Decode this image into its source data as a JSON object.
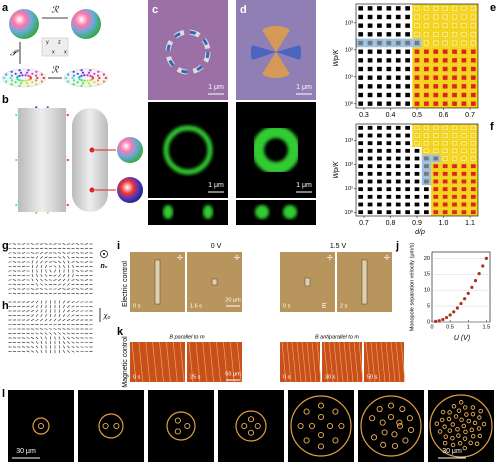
{
  "panels": {
    "a": {
      "label": "a",
      "top_operator": "ℛ",
      "left_operator": "𝒫",
      "bottom_operator": "ℛ",
      "inset_axes": [
        "y",
        "z",
        "x",
        "x"
      ]
    },
    "b": {
      "label": "b"
    },
    "c": {
      "label": "c",
      "scale_top": "1 μm",
      "scale_bottom": "1 μm"
    },
    "d": {
      "label": "d",
      "scale_top": "1 μm",
      "scale_bottom": "1 μm"
    },
    "e": {
      "label": "e",
      "y_label": "Wp/K",
      "xlim": [
        0.27,
        0.73
      ],
      "xticks": [
        0.3,
        0.4,
        0.5,
        0.6,
        0.7
      ],
      "ylim": [
        0.7,
        5000
      ],
      "log_y": true,
      "yticks": [
        {
          "value": 1,
          "label": "10⁰"
        },
        {
          "value": 10,
          "label": "10¹"
        },
        {
          "value": 100,
          "label": "10²"
        },
        {
          "value": 1000,
          "label": "10³"
        }
      ]
    },
    "f": {
      "label": "f",
      "y_label": "Wp/K",
      "x_label": "d/p",
      "xlim": [
        0.67,
        1.13
      ],
      "xticks": [
        0.7,
        0.8,
        0.9,
        {
          "value": 1,
          "label": "1.0"
        },
        1.1
      ],
      "ylim": [
        0.7,
        5000
      ],
      "log_y": true,
      "yticks": [
        {
          "value": 1,
          "label": "10⁰"
        },
        {
          "value": 10,
          "label": "10¹"
        },
        {
          "value": 100,
          "label": "10²"
        },
        {
          "value": 1000,
          "label": "10³"
        }
      ]
    },
    "g": {
      "label": "g",
      "symbol": "n₀"
    },
    "h": {
      "label": "h",
      "symbol": "χ₀"
    },
    "i": {
      "label": "i",
      "row_label": "Electric control",
      "voltage_left": "0 V",
      "voltage_right": "1.5 V",
      "times": [
        "0 s",
        "1.6 s",
        "0 s",
        "2 s"
      ],
      "scale": "20 μm",
      "field": "E"
    },
    "j": {
      "label": "j",
      "y_label": "Monopole separation velocity (μm/s)",
      "x_label": "U (V)",
      "xlim": [
        0,
        1.6
      ],
      "xticks": [
        0,
        0.5,
        1,
        1.5
      ],
      "ylim": [
        0,
        22
      ],
      "yticks": [
        0,
        5,
        10,
        15,
        20
      ],
      "series": {
        "color": "#b03020",
        "x": [
          0.1,
          0.2,
          0.3,
          0.4,
          0.5,
          0.6,
          0.7,
          0.8,
          0.9,
          1.0,
          1.1,
          1.2,
          1.3,
          1.4,
          1.5
        ],
        "values": [
          0.2,
          0.4,
          0.8,
          1.4,
          2.2,
          3.2,
          4.4,
          5.8,
          7.3,
          9,
          10.9,
          13,
          15.2,
          17.6,
          20
        ]
      }
    },
    "k": {
      "label": "k",
      "row_label": "Magnetic control",
      "header_left": "B parallel to m",
      "header_right": "B antiparallel to m",
      "times": [
        "0 s",
        "25 s",
        "0 s",
        "30 s",
        "50 s"
      ],
      "scale": "50 μm"
    },
    "l": {
      "label": "l",
      "scale_left": "30 μm",
      "scale_right": "30 μm"
    }
  }
}
